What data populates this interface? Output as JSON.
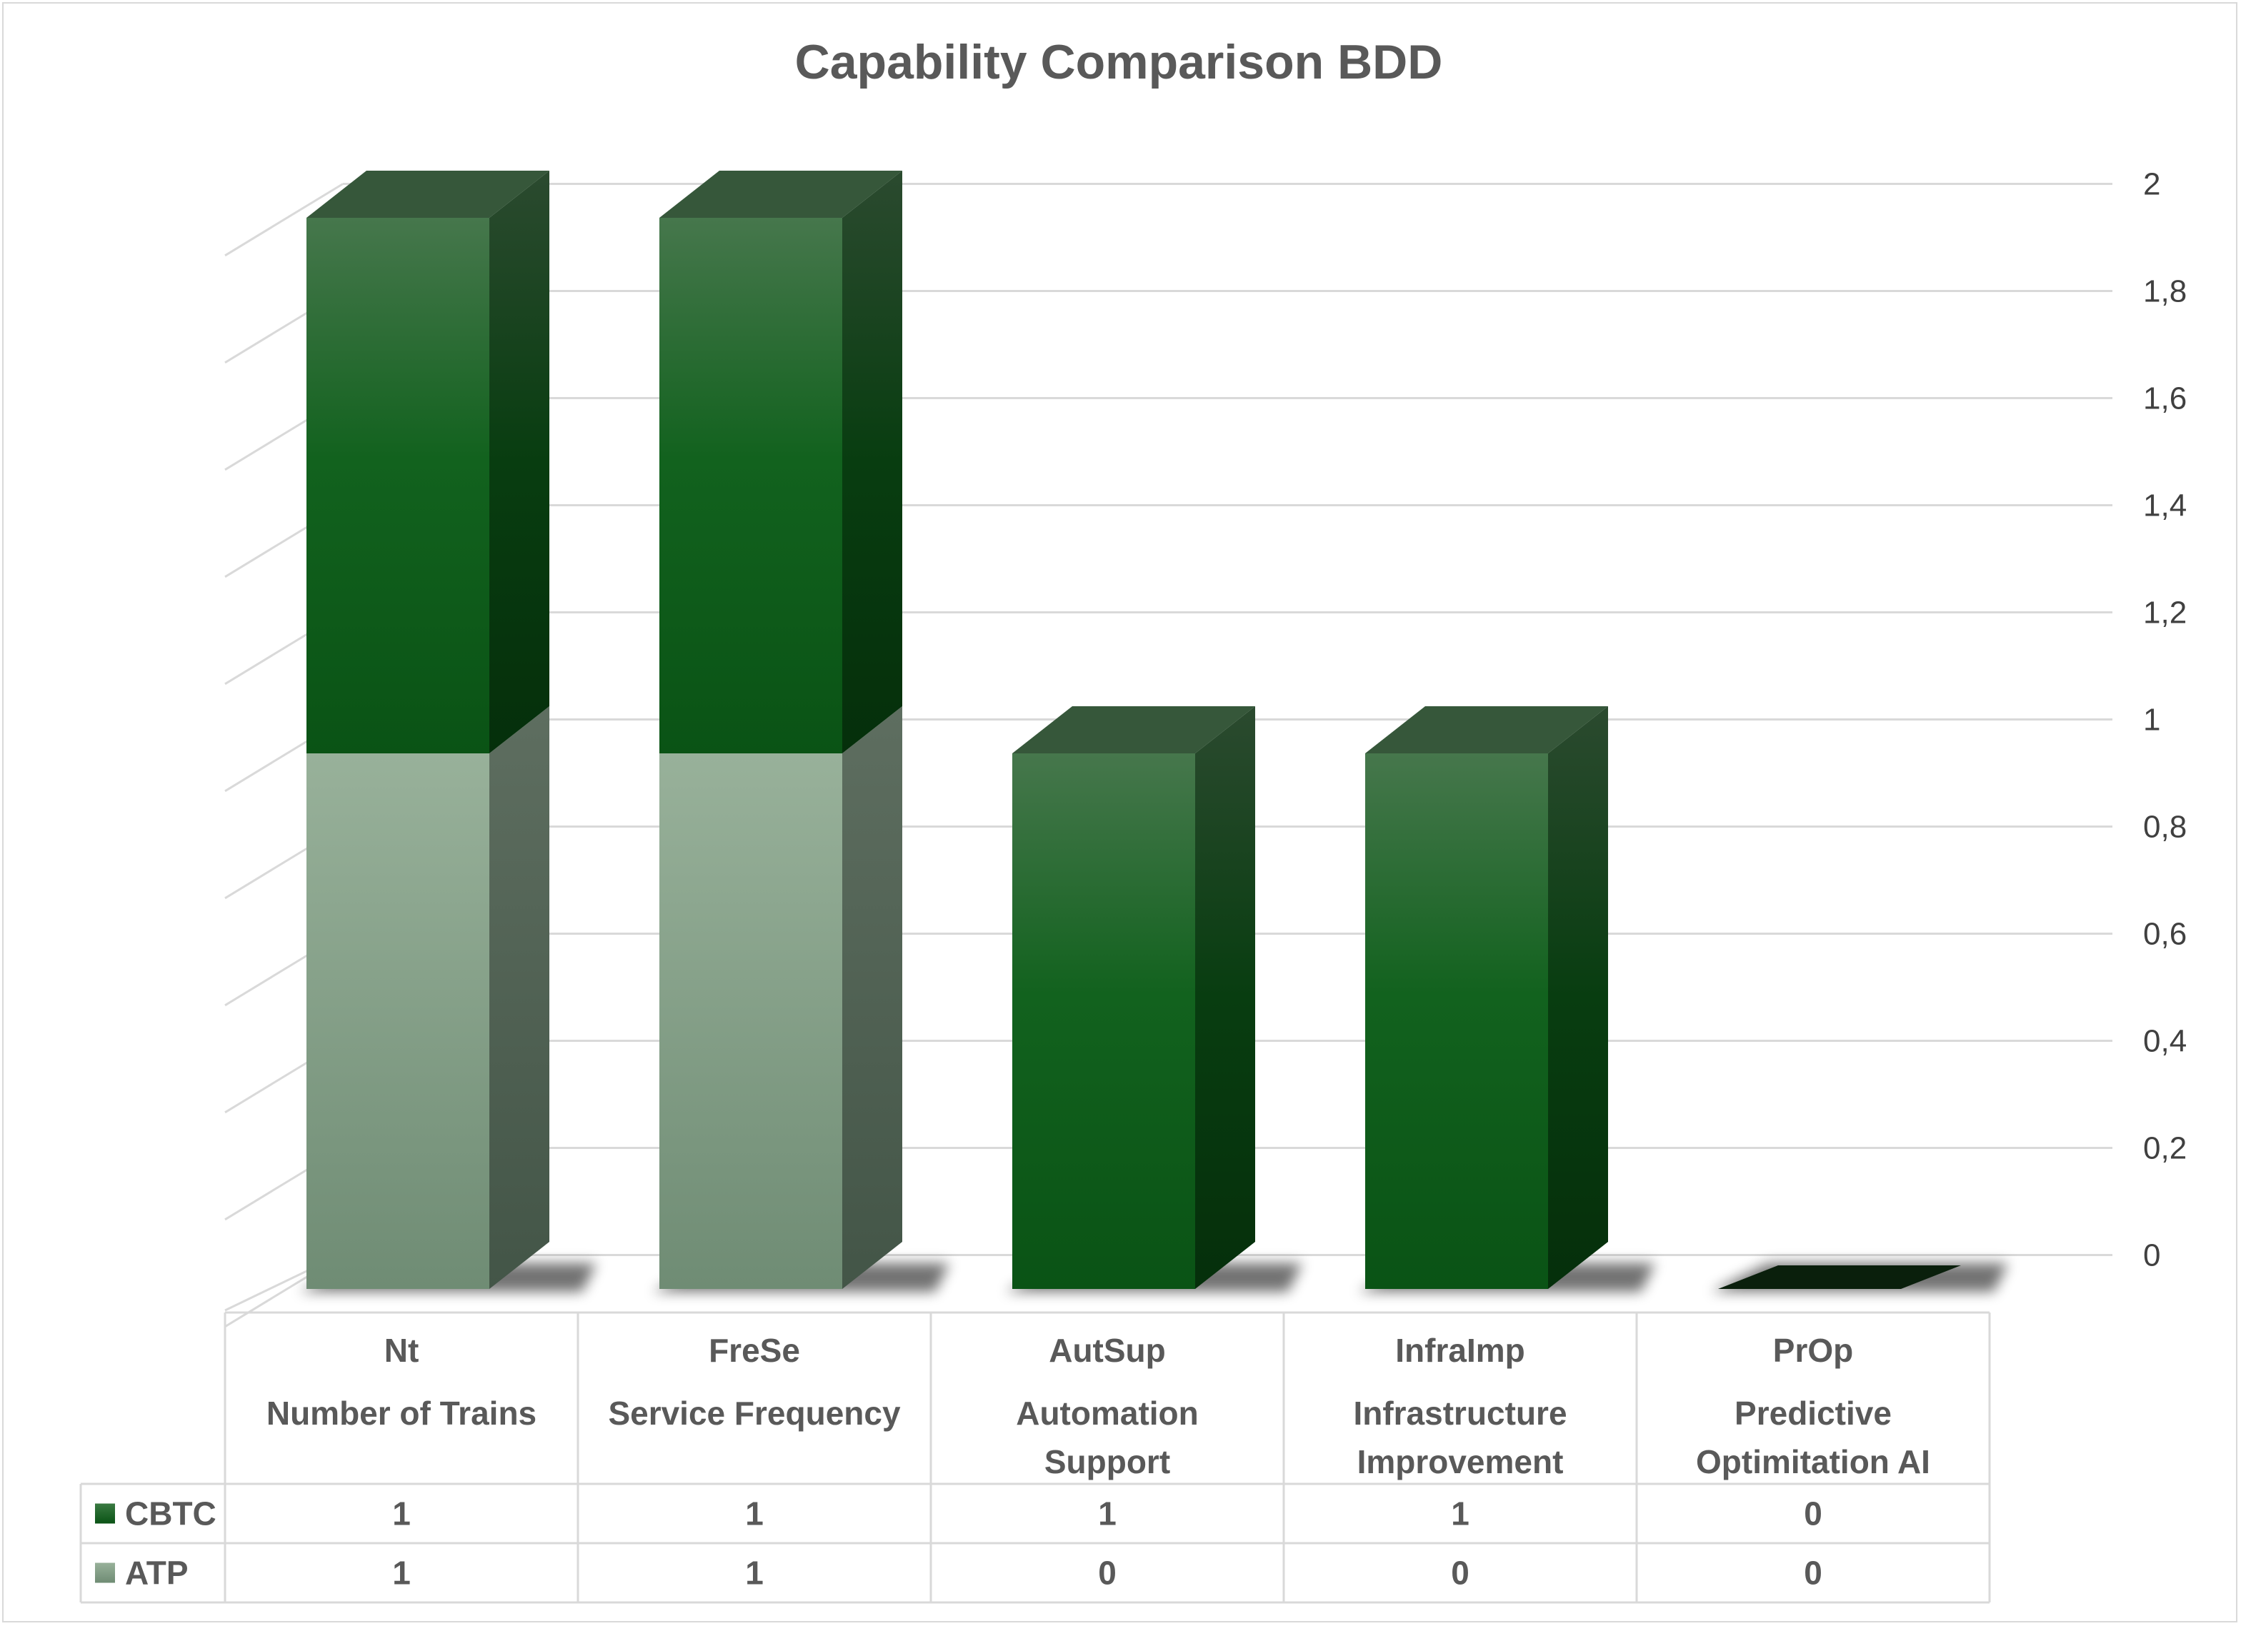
{
  "chart_data": {
    "type": "bar",
    "stacked": true,
    "title": "Capability Comparison BDD",
    "categories": [
      {
        "code": "Nt",
        "name": [
          "Number of Trains"
        ]
      },
      {
        "code": "FreSe",
        "name": [
          "Service Frequency"
        ]
      },
      {
        "code": "AutSup",
        "name": [
          "Automation",
          "Support"
        ]
      },
      {
        "code": "InfraImp",
        "name": [
          "Infrastructure",
          "Improvement"
        ]
      },
      {
        "code": "PrOp",
        "name": [
          "Predictive",
          "Optimitation AI"
        ]
      }
    ],
    "series": [
      {
        "name": "CBTC",
        "values": [
          1,
          1,
          1,
          1,
          0
        ],
        "color": "#0f5e1b"
      },
      {
        "name": "ATP",
        "values": [
          1,
          1,
          0,
          0,
          0
        ],
        "color": "#86a58a"
      }
    ],
    "ylim": [
      0,
      2
    ],
    "y_ticks": [
      "0",
      "0,2",
      "0,4",
      "0,6",
      "0,8",
      "1",
      "1,2",
      "1,4",
      "1,6",
      "1,8",
      "2"
    ],
    "y_axis_side": "right",
    "grid": true,
    "legend": "data-table"
  }
}
